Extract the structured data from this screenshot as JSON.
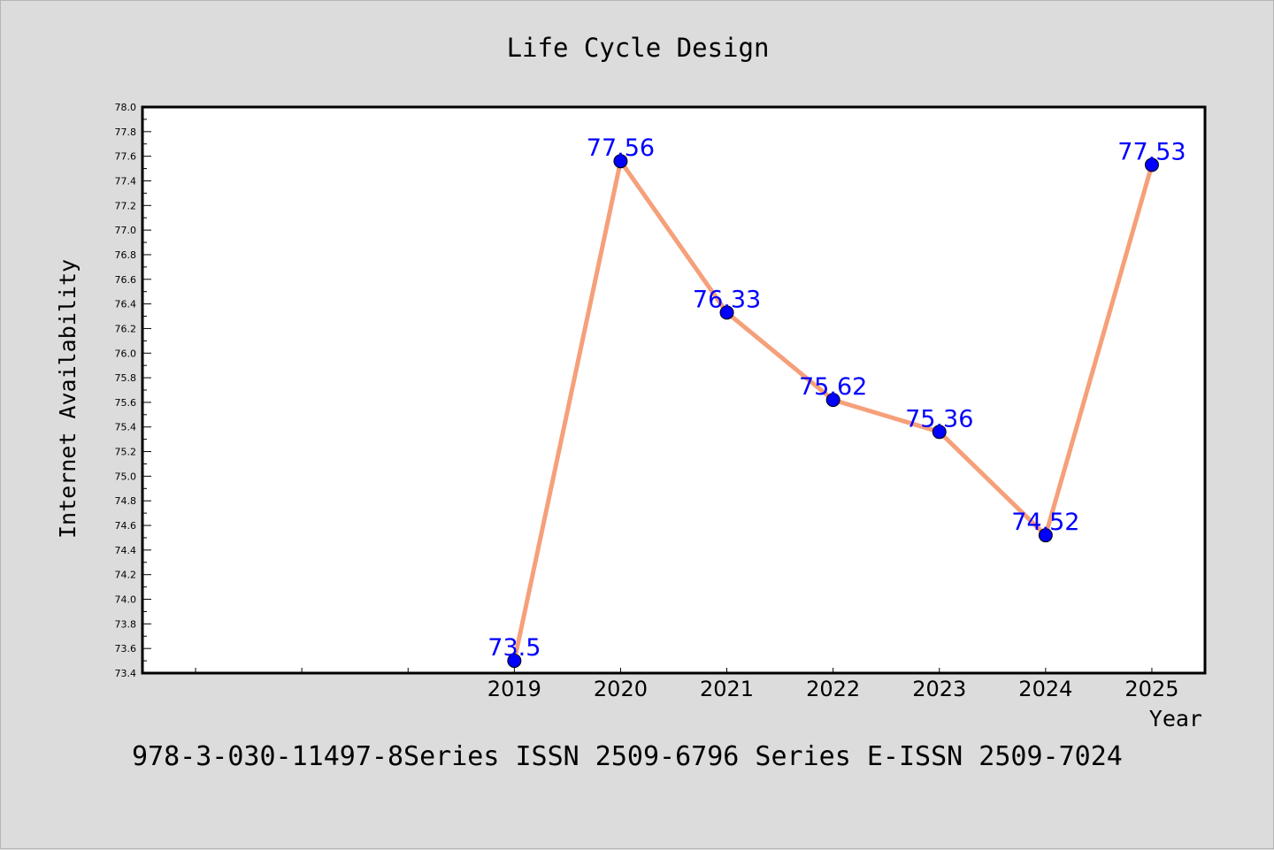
{
  "chart_data": {
    "type": "line",
    "title": "Life Cycle Design",
    "xlabel": "Year",
    "ylabel": "Internet Availability",
    "x": [
      "2019",
      "2020",
      "2021",
      "2022",
      "2023",
      "2024",
      "2025"
    ],
    "series": [
      {
        "values": [
          73.5,
          77.56,
          76.33,
          75.62,
          75.36,
          74.52,
          77.53
        ],
        "labels": [
          "73.5",
          "77.56",
          "76.33",
          "75.62",
          "75.36",
          "74.52",
          "77.53"
        ],
        "line_color": "#f5a07a",
        "marker_color": "#0000ff"
      }
    ],
    "ylim": [
      73.4,
      78.0
    ],
    "ytick_step": 0.2,
    "grid": false,
    "legend": "none"
  },
  "footer": {
    "text": "978-3-030-11497-8Series ISSN 2509-6796 Series E-ISSN 2509-7024"
  },
  "colors": {
    "background": "#dcdcdc",
    "plot_background": "#ffffff",
    "line": "#f5a07a",
    "marker": "#0000ff",
    "data_label": "#0000ff"
  }
}
